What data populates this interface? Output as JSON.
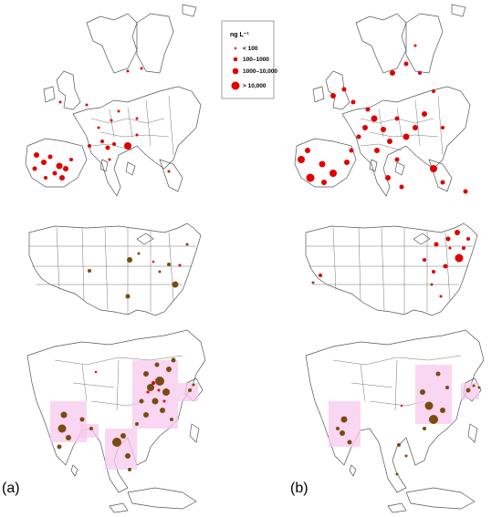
{
  "legend": {
    "title": "ng L⁻¹",
    "items": [
      {
        "label": "< 100"
      },
      {
        "label": "100–1000"
      },
      {
        "label": "1000–10,000"
      },
      {
        "label": "> 10,000"
      }
    ]
  },
  "panels": {
    "a": {
      "label": "(a)"
    },
    "b": {
      "label": "(b)"
    }
  },
  "colors": {
    "europe_markers": "#e00000",
    "us_asia_markers": "#7a4a10",
    "density_shading": "#f7c8ec"
  }
}
